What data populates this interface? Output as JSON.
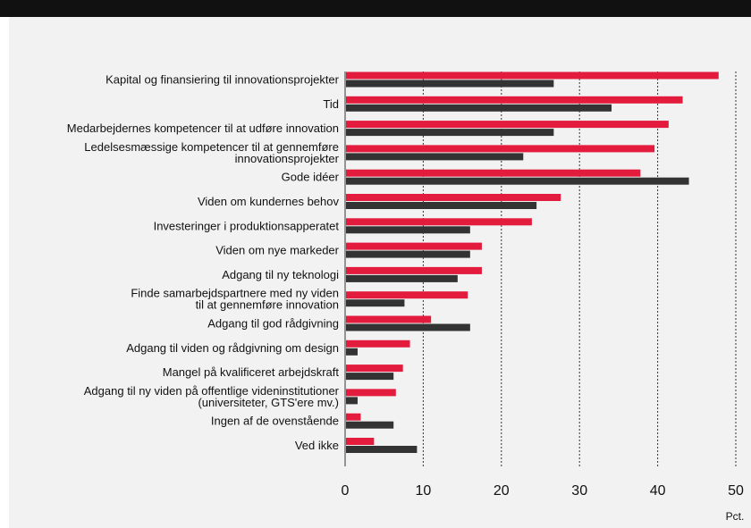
{
  "chart_data": {
    "type": "bar",
    "orientation": "horizontal",
    "categories": [
      [
        "Kapital og finansiering til innovationsprojekter"
      ],
      [
        "Tid"
      ],
      [
        "Medarbejdernes kompetencer til at udføre innovation"
      ],
      [
        "Ledelsesmæssige kompetencer til at gennemføre",
        "innovationsprojekter"
      ],
      [
        "Gode idéer"
      ],
      [
        "Viden om kundernes behov"
      ],
      [
        "Investeringer i produktionsapperatet"
      ],
      [
        "Viden om nye markeder"
      ],
      [
        "Adgang til ny teknologi"
      ],
      [
        "Finde samarbejdspartnere med ny viden",
        "til at gennemføre innovation"
      ],
      [
        "Adgang til god rådgivning"
      ],
      [
        "Adgang til viden og rådgivning om design"
      ],
      [
        "Mangel på kvalificeret arbejdskraft"
      ],
      [
        "Adgang til ny viden på offentlige videninstitutioner",
        "(universiteter, GTS'ere mv.)"
      ],
      [
        "Ingen af de ovenstående"
      ],
      [
        "Ved ikke"
      ]
    ],
    "series": [
      {
        "color": "#e31b3c",
        "values": [
          47.8,
          43.2,
          41.4,
          39.6,
          37.8,
          27.6,
          23.9,
          17.5,
          17.5,
          15.7,
          11.0,
          8.3,
          7.4,
          6.5,
          2.0,
          3.7
        ]
      },
      {
        "color": "#333333",
        "values": [
          26.7,
          34.1,
          26.7,
          22.8,
          44.0,
          24.5,
          16.0,
          16.0,
          14.4,
          7.6,
          16.0,
          1.6,
          6.2,
          1.6,
          6.2,
          9.2
        ]
      }
    ],
    "xlim": [
      0,
      50
    ],
    "xticks": [
      0,
      10,
      20,
      30,
      40,
      50
    ],
    "xunit": "Pct.",
    "grid": "vertical dashed"
  }
}
